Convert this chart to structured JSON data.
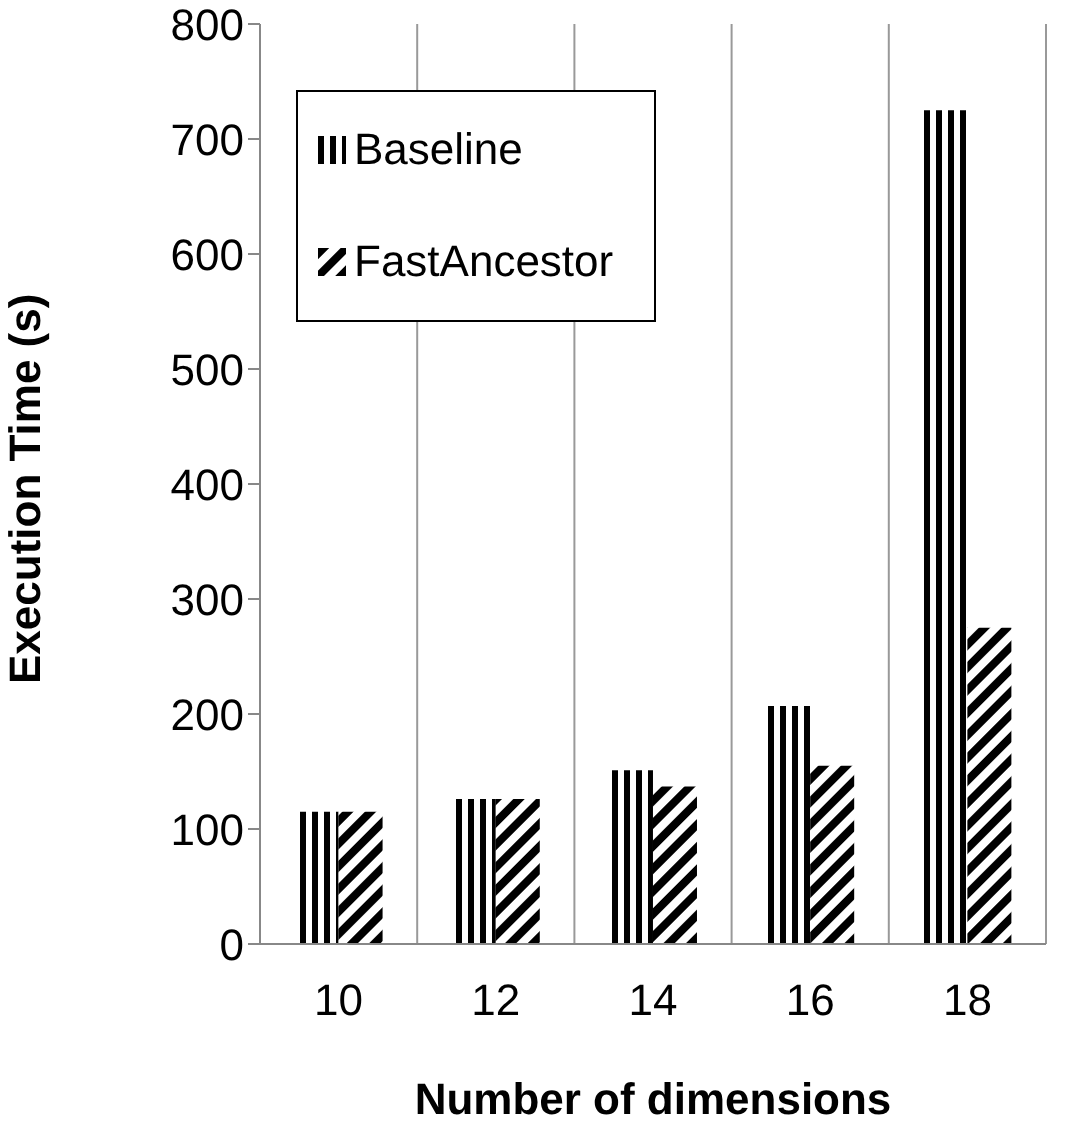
{
  "chart_data": {
    "type": "bar",
    "xlabel": "Number of dimensions",
    "ylabel": "Execution Time (s)",
    "categories": [
      "10",
      "12",
      "14",
      "16",
      "18"
    ],
    "series": [
      {
        "name": "Baseline",
        "color": "#000000",
        "values": [
          115,
          126,
          151,
          207,
          725
        ]
      },
      {
        "name": "FastAncestor",
        "color": "#000000",
        "values": [
          115,
          126,
          137,
          155,
          275
        ]
      }
    ],
    "ylim": [
      0,
      800
    ],
    "yticks": [
      0,
      100,
      200,
      300,
      400,
      500,
      600,
      700,
      800
    ],
    "grid": "x",
    "legend": "top left"
  }
}
